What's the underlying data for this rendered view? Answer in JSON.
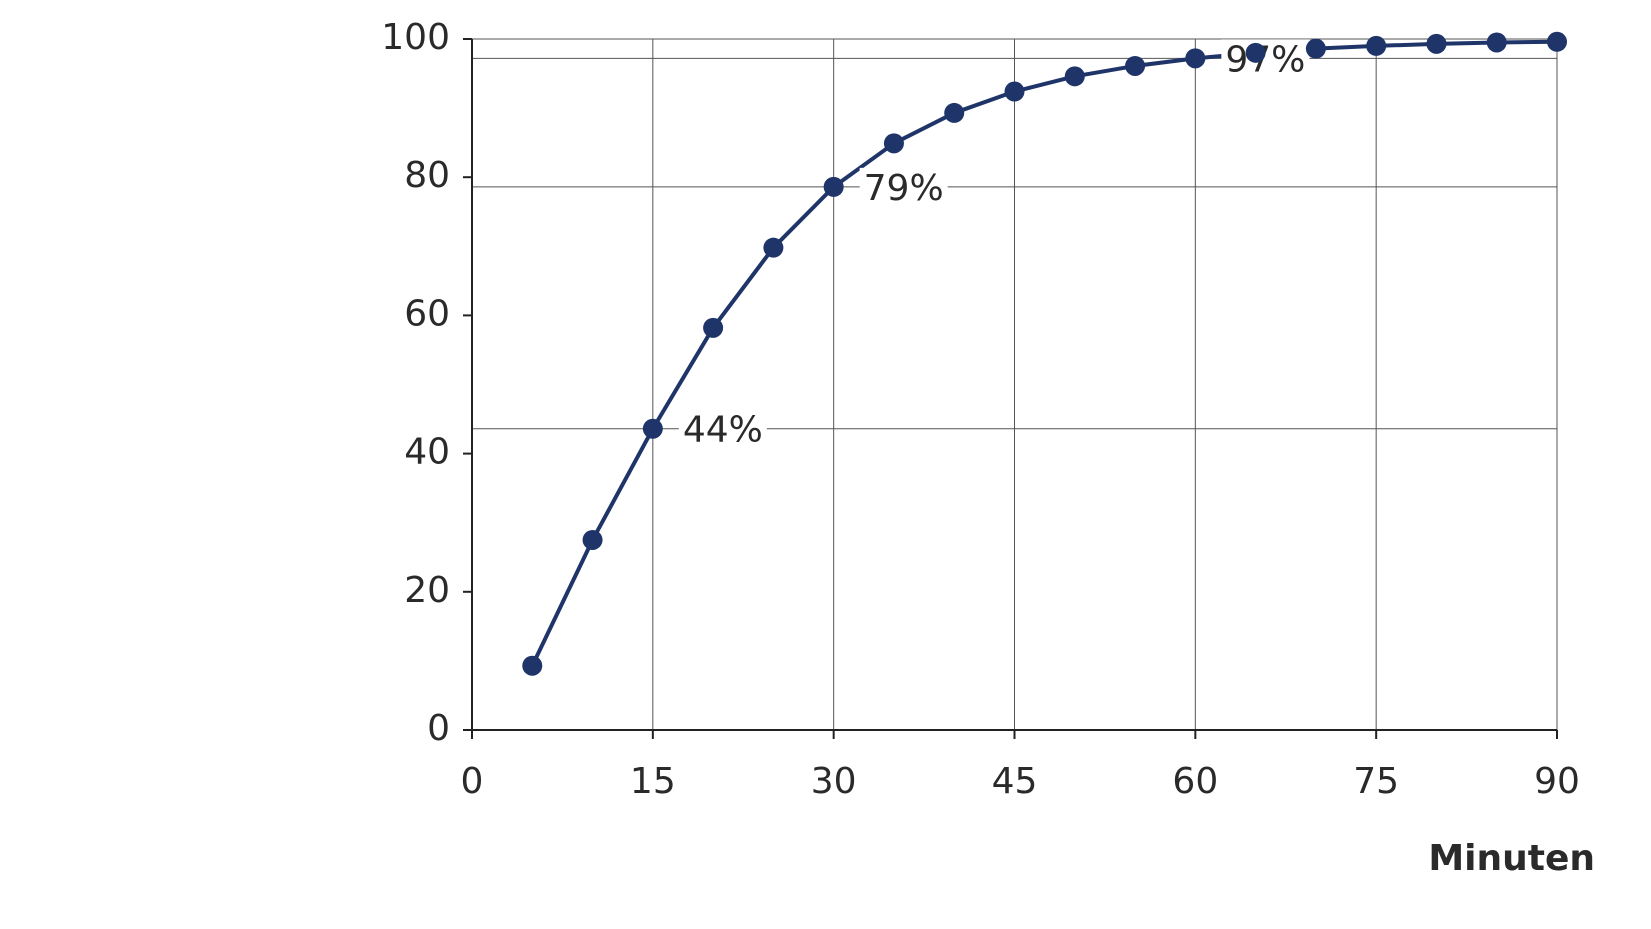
{
  "chart_data": {
    "type": "line",
    "x_label": "Minuten",
    "x": [
      5,
      10,
      15,
      20,
      25,
      30,
      35,
      40,
      45,
      50,
      55,
      60,
      65,
      70,
      75,
      80,
      85,
      90
    ],
    "series": [
      {
        "color": "#1f3468",
        "values": [
          9.3,
          27.5,
          43.6,
          58.2,
          69.8,
          78.6,
          84.9,
          89.3,
          92.4,
          94.6,
          96.1,
          97.2,
          98.0,
          98.6,
          99.0,
          99.3,
          99.5,
          99.6
        ],
        "value_labels": [
          null,
          null,
          "44%",
          null,
          null,
          "79%",
          null,
          null,
          null,
          null,
          null,
          "97%",
          null,
          null,
          null,
          null,
          null,
          null
        ]
      }
    ],
    "xlim": [
      0,
      90
    ],
    "xticks": [
      0,
      15,
      30,
      45,
      60,
      75,
      90
    ],
    "ylim": [
      0,
      100
    ],
    "yticks": [
      0,
      20,
      40,
      60,
      80,
      100
    ],
    "grid": "x"
  }
}
